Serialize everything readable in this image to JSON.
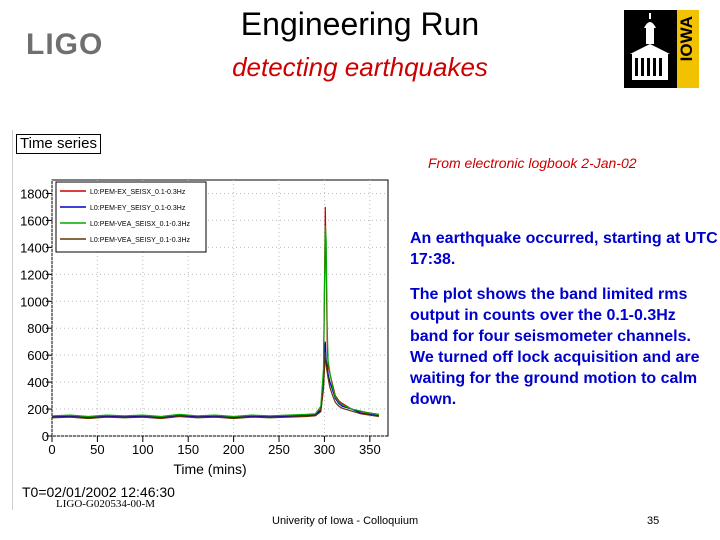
{
  "header": {
    "logo_text": "LIGO",
    "title": "Engineering Run",
    "subtitle": "detecting earthquakes",
    "iowa_logo_text": "IOWA"
  },
  "plot": {
    "panel_title": "Time series",
    "t0_label": "T0=02/01/2002 12:46:30",
    "doc_id": "LIGO-G020534-00-M"
  },
  "notes": {
    "source": "From electronic logbook 2-Jan-02",
    "paragraph1": "An earthquake occurred, starting at UTC 17:38.",
    "paragraph2": "The plot shows the band limited rms output  in counts over the 0.1-0.3Hz band for four seismometer channels. We turned off lock acquisition and  are waiting for the ground motion to calm down."
  },
  "footer": {
    "center": "Univerity of Iowa - Colloquium",
    "page": "35"
  },
  "chart_data": {
    "type": "line",
    "title": "",
    "xlabel": "Time (mins)",
    "ylabel": "",
    "xlim": [
      0,
      370
    ],
    "ylim": [
      0,
      1900
    ],
    "xticks": [
      0,
      50,
      100,
      150,
      200,
      250,
      300,
      350
    ],
    "yticks": [
      0,
      200,
      400,
      600,
      800,
      1000,
      1200,
      1400,
      1600,
      1800
    ],
    "grid": true,
    "legend_position": "top-left",
    "series": [
      {
        "name": "L0:PEM-EX_SEISX_0.1-0.3Hz",
        "color": "#cc0000",
        "x": [
          0,
          20,
          40,
          60,
          80,
          100,
          120,
          140,
          160,
          180,
          200,
          220,
          240,
          260,
          280,
          290,
          296,
          299,
          301,
          302,
          303,
          304,
          306,
          309,
          312,
          316,
          320,
          325,
          330,
          340,
          350,
          360
        ],
        "y": [
          145,
          150,
          140,
          150,
          145,
          150,
          140,
          155,
          145,
          150,
          140,
          150,
          145,
          150,
          155,
          160,
          200,
          420,
          1700,
          1250,
          700,
          520,
          460,
          380,
          300,
          260,
          240,
          220,
          200,
          180,
          170,
          160
        ]
      },
      {
        "name": "L0:PEM-EY_SEISY_0.1-0.3Hz",
        "color": "#0000cc",
        "x": [
          0,
          20,
          40,
          60,
          80,
          100,
          120,
          140,
          160,
          180,
          200,
          220,
          240,
          260,
          280,
          290,
          296,
          299,
          301,
          302,
          304,
          306,
          309,
          312,
          316,
          320,
          325,
          330,
          340,
          350,
          360
        ],
        "y": [
          140,
          145,
          135,
          145,
          140,
          145,
          135,
          150,
          140,
          145,
          135,
          145,
          140,
          145,
          150,
          155,
          190,
          380,
          700,
          560,
          460,
          400,
          340,
          280,
          240,
          220,
          210,
          200,
          170,
          160,
          150
        ]
      },
      {
        "name": "L0:PEM-VEA_SEISX_0.1-0.3Hz",
        "color": "#00aa00",
        "x": [
          0,
          20,
          40,
          60,
          80,
          100,
          120,
          140,
          160,
          180,
          200,
          220,
          240,
          260,
          280,
          290,
          296,
          299,
          301,
          302,
          303,
          304,
          306,
          309,
          312,
          316,
          320,
          325,
          330,
          340,
          350,
          360
        ],
        "y": [
          150,
          155,
          145,
          155,
          150,
          155,
          145,
          160,
          150,
          155,
          145,
          155,
          150,
          155,
          160,
          165,
          220,
          500,
          1560,
          1450,
          800,
          560,
          470,
          360,
          290,
          250,
          230,
          215,
          200,
          185,
          170,
          160
        ]
      },
      {
        "name": "L0:PEM-VEA_SEISY_0.1-0.3Hz",
        "color": "#663300",
        "x": [
          0,
          20,
          40,
          60,
          80,
          100,
          120,
          140,
          160,
          180,
          200,
          220,
          240,
          260,
          280,
          290,
          296,
          299,
          301,
          302,
          304,
          306,
          309,
          312,
          316,
          320,
          325,
          330,
          340,
          350,
          360
        ],
        "y": [
          135,
          140,
          130,
          140,
          135,
          140,
          130,
          145,
          135,
          140,
          130,
          140,
          135,
          140,
          145,
          150,
          180,
          350,
          620,
          520,
          430,
          360,
          300,
          250,
          220,
          205,
          195,
          185,
          165,
          155,
          145
        ]
      }
    ]
  }
}
